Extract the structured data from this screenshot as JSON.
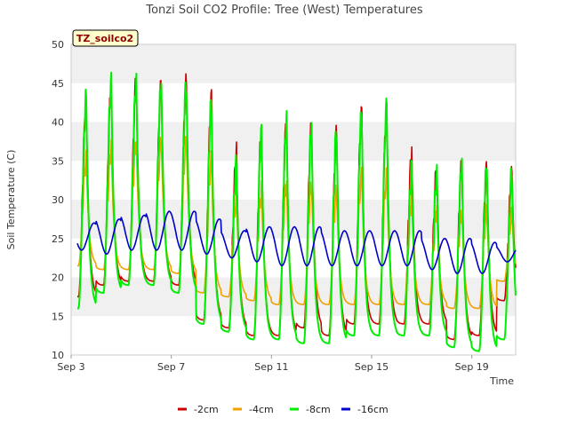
{
  "chart_data": {
    "type": "line",
    "title": "Tonzi Soil CO2 Profile: Tree (West) Temperatures",
    "xlabel": "Time",
    "ylabel": "Soil Temperature (C)",
    "badge": "TZ_soilco2",
    "ylim": [
      10,
      50
    ],
    "yticks": [
      10,
      15,
      20,
      25,
      30,
      35,
      40,
      45,
      50
    ],
    "xlim": [
      "Sep 3",
      "Sep 20 18:00"
    ],
    "xticks": [
      "Sep 3",
      "Sep 7",
      "Sep 11",
      "Sep 15",
      "Sep 19"
    ],
    "grid": "horizontal bands",
    "legend_position": "bottom",
    "x_dates": [
      "Sep 3",
      "Sep 4",
      "Sep 5",
      "Sep 6",
      "Sep 7",
      "Sep 8",
      "Sep 9",
      "Sep 10",
      "Sep 11",
      "Sep 12",
      "Sep 13",
      "Sep 14",
      "Sep 15",
      "Sep 16",
      "Sep 17",
      "Sep 18",
      "Sep 19",
      "Sep 20"
    ],
    "series": [
      {
        "name": "-2cm",
        "color": "#cc0000",
        "daily_min": [
          17.5,
          19.0,
          19.5,
          19.5,
          19.0,
          14.5,
          13.5,
          12.5,
          12.5,
          13.5,
          12.5,
          14.0,
          14.0,
          14.0,
          14.0,
          12.0,
          12.5,
          17.0
        ],
        "daily_max": [
          42.0,
          44.0,
          45.5,
          45.0,
          45.0,
          43.0,
          36.0,
          38.5,
          40.0,
          39.5,
          38.5,
          41.0,
          41.0,
          36.0,
          34.0,
          34.5,
          34.0,
          33.0
        ]
      },
      {
        "name": "-4cm",
        "color": "#f0a000",
        "daily_min": [
          21.5,
          21.0,
          21.0,
          21.0,
          20.5,
          18.0,
          17.5,
          17.0,
          16.5,
          16.5,
          16.5,
          16.5,
          16.5,
          16.5,
          16.5,
          16.0,
          16.0,
          19.5
        ],
        "daily_max": [
          35.0,
          36.5,
          37.5,
          37.5,
          37.5,
          35.0,
          30.0,
          31.0,
          32.0,
          32.0,
          31.0,
          33.0,
          33.0,
          30.0,
          28.5,
          28.5,
          28.5,
          28.0
        ]
      },
      {
        "name": "-8cm",
        "color": "#00ee00",
        "daily_min": [
          16.0,
          18.0,
          19.0,
          19.0,
          18.0,
          14.0,
          13.0,
          12.0,
          12.0,
          11.5,
          11.5,
          12.5,
          12.5,
          12.5,
          12.5,
          11.0,
          10.5,
          12.0
        ],
        "daily_max": [
          43.0,
          45.0,
          45.0,
          45.0,
          45.0,
          42.5,
          34.5,
          38.5,
          40.0,
          39.5,
          39.0,
          41.0,
          42.0,
          34.0,
          33.0,
          34.5,
          34.5,
          33.5
        ]
      },
      {
        "name": "-16cm",
        "color": "#0000cc",
        "daily_min": [
          23.5,
          23.0,
          23.5,
          23.5,
          23.5,
          23.0,
          22.5,
          22.0,
          21.5,
          21.5,
          21.5,
          21.5,
          21.5,
          21.5,
          21.0,
          20.5,
          20.5,
          22.0
        ],
        "daily_max": [
          27.0,
          27.5,
          28.0,
          28.5,
          28.5,
          27.5,
          26.0,
          26.5,
          26.5,
          26.5,
          26.0,
          26.0,
          26.0,
          26.0,
          25.0,
          25.0,
          24.5,
          24.0
        ]
      }
    ]
  }
}
